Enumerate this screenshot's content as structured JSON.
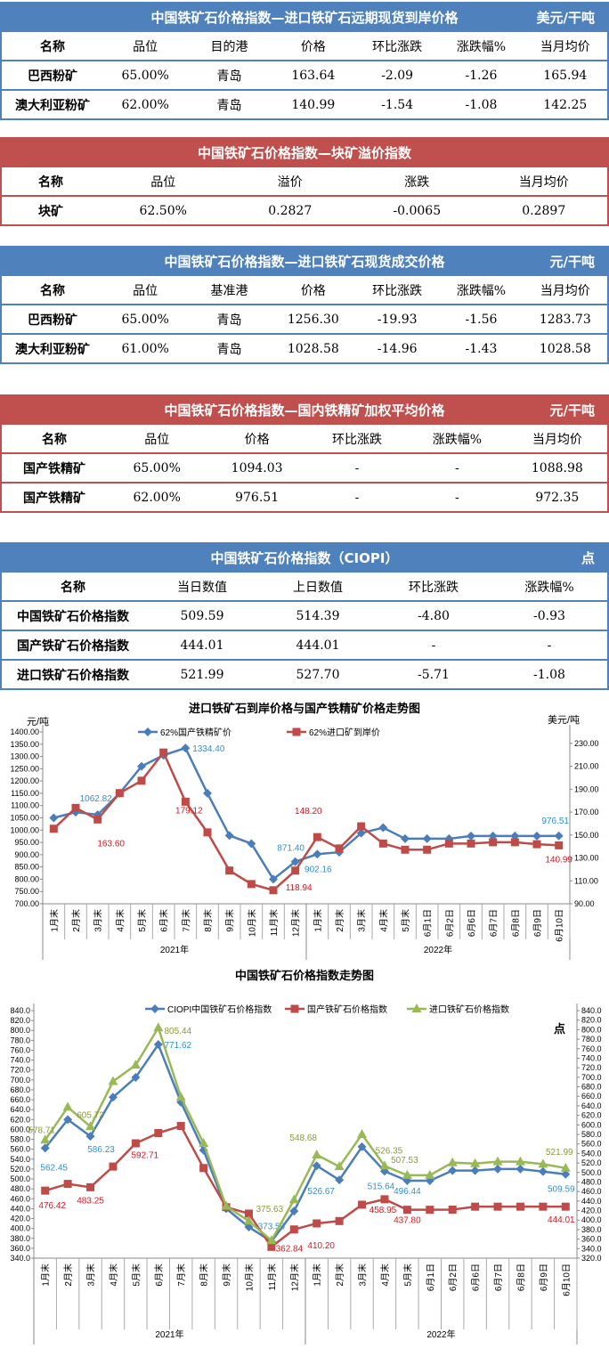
{
  "tables": [
    {
      "theme": "blue",
      "title": "中国铁矿石价格指数—进口铁矿石远期现货到岸价格",
      "unit": "美元/干吨",
      "columns": [
        "名称",
        "品位",
        "目的港",
        "价格",
        "环比涨跌",
        "涨跌幅%",
        "当月均价"
      ],
      "rows": [
        [
          "巴西粉矿",
          "65.00%",
          "青岛",
          "163.64",
          "-2.09",
          "-1.26",
          "165.94"
        ],
        [
          "澳大利亚粉矿",
          "62.00%",
          "青岛",
          "140.99",
          "-1.54",
          "-1.08",
          "142.25"
        ]
      ]
    },
    {
      "theme": "red",
      "title": "中国铁矿石价格指数—块矿溢价指数",
      "unit": "",
      "columns": [
        "名称",
        "品位",
        "溢价",
        "涨跌",
        "当月均价"
      ],
      "rows": [
        [
          "块矿",
          "62.50%",
          "0.2827",
          "-0.0065",
          "0.2897"
        ]
      ]
    },
    {
      "theme": "blue",
      "title": "中国铁矿石价格指数—进口铁矿石现货成交价格",
      "unit": "元/干吨",
      "columns": [
        "名称",
        "品位",
        "基准港",
        "价格",
        "环比涨跌",
        "涨跌幅%",
        "当月均价"
      ],
      "rows": [
        [
          "巴西粉矿",
          "65.00%",
          "青岛",
          "1256.30",
          "-19.93",
          "-1.56",
          "1283.73"
        ],
        [
          "澳大利亚粉矿",
          "61.00%",
          "青岛",
          "1028.58",
          "-14.96",
          "-1.43",
          "1028.58"
        ]
      ]
    },
    {
      "theme": "red",
      "title": "中国铁矿石价格指数—国内铁精矿加权平均价格",
      "unit": "元/干吨",
      "columns": [
        "名称",
        "品位",
        "价格",
        "环比涨跌",
        "涨跌幅%",
        "当月均价"
      ],
      "rows": [
        [
          "国产铁精矿",
          "65.00%",
          "1094.03",
          "-",
          "-",
          "1088.98"
        ],
        [
          "国产铁精矿",
          "62.00%",
          "976.51",
          "-",
          "-",
          "972.35"
        ]
      ]
    },
    {
      "theme": "blue",
      "title": "中国铁矿石价格指数（CIOPI）",
      "unit": "点",
      "columns": [
        "名称",
        "当日数值",
        "上日数值",
        "环比涨跌",
        "涨跌幅%"
      ],
      "rows": [
        [
          "中国铁矿石价格指数",
          "509.59",
          "514.39",
          "-4.80",
          "-0.93"
        ],
        [
          "国产铁矿石价格指数",
          "444.01",
          "444.01",
          "-",
          "-"
        ],
        [
          "进口铁矿石价格指数",
          "521.99",
          "527.70",
          "-5.71",
          "-1.08"
        ]
      ]
    }
  ],
  "chart_data": [
    {
      "type": "line",
      "title": "进口铁矿石到岸价格与国产铁精矿价格走势图",
      "ylabel": "元/吨",
      "y2label": "美元/吨",
      "categories": [
        "1月末",
        "2月末",
        "3月末",
        "4月末",
        "5月末",
        "6月末",
        "7月末",
        "8月末",
        "9月末",
        "10月末",
        "11月末",
        "12月末",
        "1月末",
        "2月末",
        "3月末",
        "4月末",
        "5月末",
        "6月1日",
        "6月2日",
        "6月6日",
        "6月7日",
        "6月8日",
        "6月9日",
        "6月10日"
      ],
      "groups": [
        {
          "name": "2021年",
          "count": 12
        },
        {
          "name": "2022年",
          "count": 12
        }
      ],
      "ylim": [
        700,
        1400
      ],
      "ystep": 50,
      "y2lim": [
        90,
        240
      ],
      "y2ticks": [
        90,
        110,
        130,
        150,
        170,
        190,
        210,
        230
      ],
      "series": [
        {
          "name": "62%国产铁精矿价",
          "axis": "left",
          "color": "#4a7ebb",
          "marker": "diamond",
          "values": [
            1050,
            1073,
            1062.82,
            1150,
            1260,
            1305,
            1334.4,
            1150,
            978,
            945,
            800,
            871.4,
            902.16,
            910,
            988,
            1010,
            965,
            965,
            965,
            976,
            976,
            976,
            976,
            976.51
          ],
          "labels": [
            2,
            6,
            11,
            12,
            23
          ],
          "labelColor": "#2f8fd8"
        },
        {
          "name": "62%进口矿到岸价",
          "axis": "right",
          "color": "#be4b48",
          "marker": "square",
          "values": [
            155.5,
            173.7,
            163.6,
            186.6,
            197.4,
            222,
            179.12,
            152.3,
            119,
            107.2,
            101.8,
            118.94,
            148.2,
            138.3,
            157.6,
            142.6,
            137.2,
            137.2,
            142.6,
            142.6,
            143.7,
            143.7,
            142,
            140.99
          ],
          "labels": [
            2,
            6,
            11,
            12,
            23
          ],
          "labelColor": "#e0141e"
        }
      ]
    },
    {
      "type": "line",
      "title": "中国铁矿石价格指数走势图",
      "y2label": "点",
      "categories": [
        "1月末",
        "2月末",
        "3月末",
        "4月末",
        "5月末",
        "6月末",
        "7月末",
        "8月末",
        "9月末",
        "10月末",
        "11月末",
        "12月末",
        "1月末",
        "2月末",
        "3月末",
        "4月末",
        "5月末",
        "6月1日",
        "6月2日",
        "6月6日",
        "6月7日",
        "6月8日",
        "6月9日",
        "6月10日"
      ],
      "groups": [
        {
          "name": "2021年",
          "count": 12
        },
        {
          "name": "2022年",
          "count": 12
        }
      ],
      "ylim": [
        340,
        840
      ],
      "ystep": 20,
      "y2lim": [
        320,
        840
      ],
      "y2step": 20,
      "series": [
        {
          "name": "CIOPI中国铁矿石价格指数",
          "color": "#4a7ebb",
          "marker": "diamond",
          "values": [
            562.45,
            620,
            586.23,
            665,
            705,
            771.62,
            655,
            558,
            440,
            403,
            373.59,
            435,
            526.67,
            498,
            565,
            515.64,
            496.44,
            496.44,
            517,
            517,
            520,
            520,
            515,
            509.59
          ],
          "labels": [
            0,
            2,
            5,
            10,
            12,
            15,
            16,
            23
          ],
          "labelColor": "#2f8fd8"
        },
        {
          "name": "国产铁矿石价格指数",
          "color": "#be4b48",
          "marker": "square",
          "values": [
            476.42,
            490,
            483.25,
            525,
            572,
            592.71,
            607,
            522,
            443,
            430,
            362.84,
            398,
            410.2,
            415,
            448,
            458.95,
            437.8,
            437.8,
            438,
            444,
            444,
            444,
            444,
            444.01
          ],
          "labels": [
            0,
            2,
            5,
            10,
            12,
            15,
            16,
            23
          ],
          "labelColor": "#e0141e"
        },
        {
          "name": "进口铁矿石价格指数",
          "color": "#98b954",
          "marker": "triangle",
          "values": [
            578.71,
            645,
            605.73,
            697,
            730,
            805.44,
            665,
            572,
            445,
            415,
            375.63,
            458,
            548.68,
            525,
            590,
            526.35,
            507.53,
            507.53,
            533,
            531,
            535,
            535,
            530,
            521.99
          ],
          "labels": [
            0,
            2,
            5,
            10,
            12,
            15,
            16,
            23
          ],
          "labelColor": "#8a9a3a"
        }
      ]
    }
  ]
}
